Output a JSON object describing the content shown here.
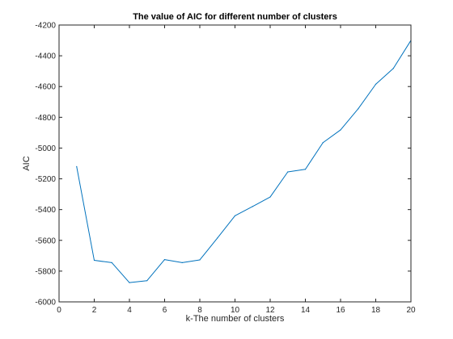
{
  "chart_data": {
    "type": "line",
    "title": "The value of AIC for different number of clusters",
    "xlabel": "k-The number of clusters",
    "ylabel": "AIC",
    "xlim": [
      0,
      20
    ],
    "ylim": [
      -6000,
      -4200
    ],
    "xticks": [
      0,
      2,
      4,
      6,
      8,
      10,
      12,
      14,
      16,
      18,
      20
    ],
    "yticks": [
      -6000,
      -5800,
      -5600,
      -5400,
      -5200,
      -5000,
      -4800,
      -4600,
      -4400,
      -4200
    ],
    "grid": false,
    "legend": "none",
    "line_color": "#0072BD",
    "series": [
      {
        "x": [
          1,
          2,
          3,
          4,
          5,
          6,
          7,
          8,
          9,
          10,
          11,
          12,
          13,
          14,
          15,
          16,
          17,
          18,
          19,
          20
        ],
        "y": [
          -5120,
          -5730,
          -5745,
          -5875,
          -5862,
          -5725,
          -5745,
          -5727,
          -5585,
          -5440,
          -5380,
          -5318,
          -5155,
          -5138,
          -4965,
          -4882,
          -4745,
          -4585,
          -4482,
          -4300
        ]
      }
    ]
  }
}
